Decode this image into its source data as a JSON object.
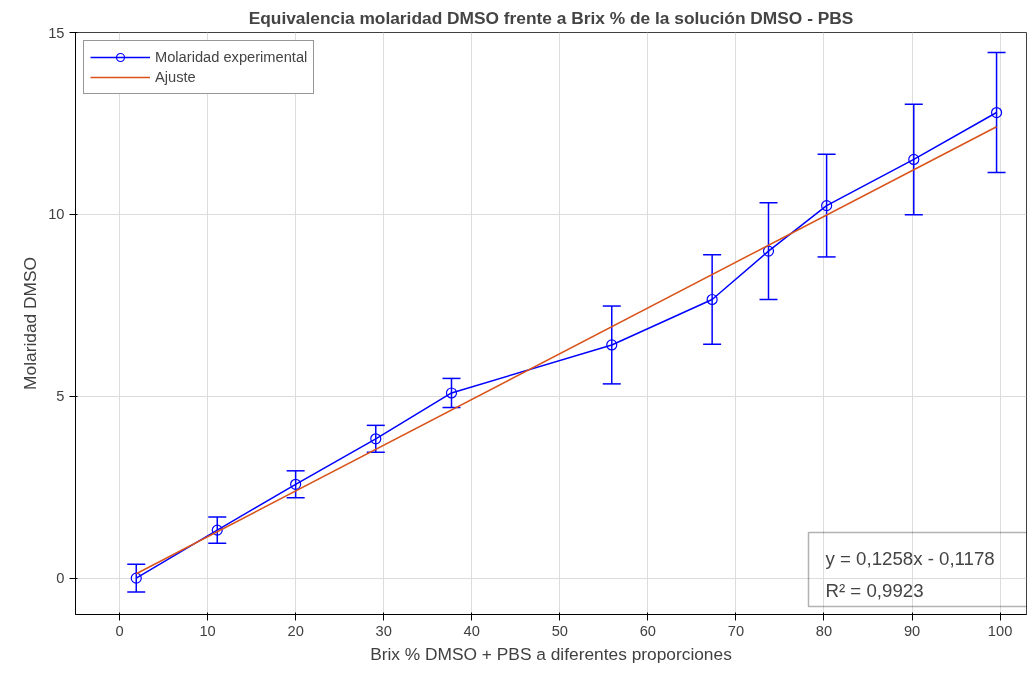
{
  "chart_data": {
    "type": "line",
    "title": "Equivalencia molaridad DMSO frente a Brix % de la solución DMSO - PBS",
    "xlabel": "Brix % DMSO + PBS a diferentes proporciones",
    "ylabel": "Molaridad DMSO",
    "x": [
      1.9,
      11.1,
      20.0,
      29.1,
      37.7,
      55.9,
      67.3,
      73.7,
      80.3,
      90.2,
      99.6
    ],
    "series": [
      {
        "name": "Molaridad experimental",
        "color": "#0000ff",
        "marker": "circle",
        "values": [
          0.0,
          1.32,
          2.58,
          3.83,
          5.09,
          6.41,
          7.66,
          8.99,
          10.24,
          11.51,
          12.8
        ],
        "errors": [
          0.38,
          0.36,
          0.37,
          0.37,
          0.4,
          1.07,
          1.23,
          1.33,
          1.41,
          1.52,
          1.65
        ]
      },
      {
        "name": "Ajuste",
        "color": "#d95319",
        "marker": "none",
        "x": [
          1.9,
          99.6
        ],
        "values": [
          0.12,
          12.41
        ]
      }
    ],
    "xlim": [
      -5,
      103
    ],
    "ylim": [
      -1,
      15
    ],
    "xticks": [
      0,
      10,
      20,
      30,
      40,
      50,
      60,
      70,
      80,
      90,
      100
    ],
    "yticks": [
      0,
      5,
      10,
      15
    ],
    "grid": true,
    "legend": "top left",
    "line_style": "solid",
    "annotations": [
      "y = 0,1258x - 0,1178",
      "R² = 0,9923"
    ]
  }
}
